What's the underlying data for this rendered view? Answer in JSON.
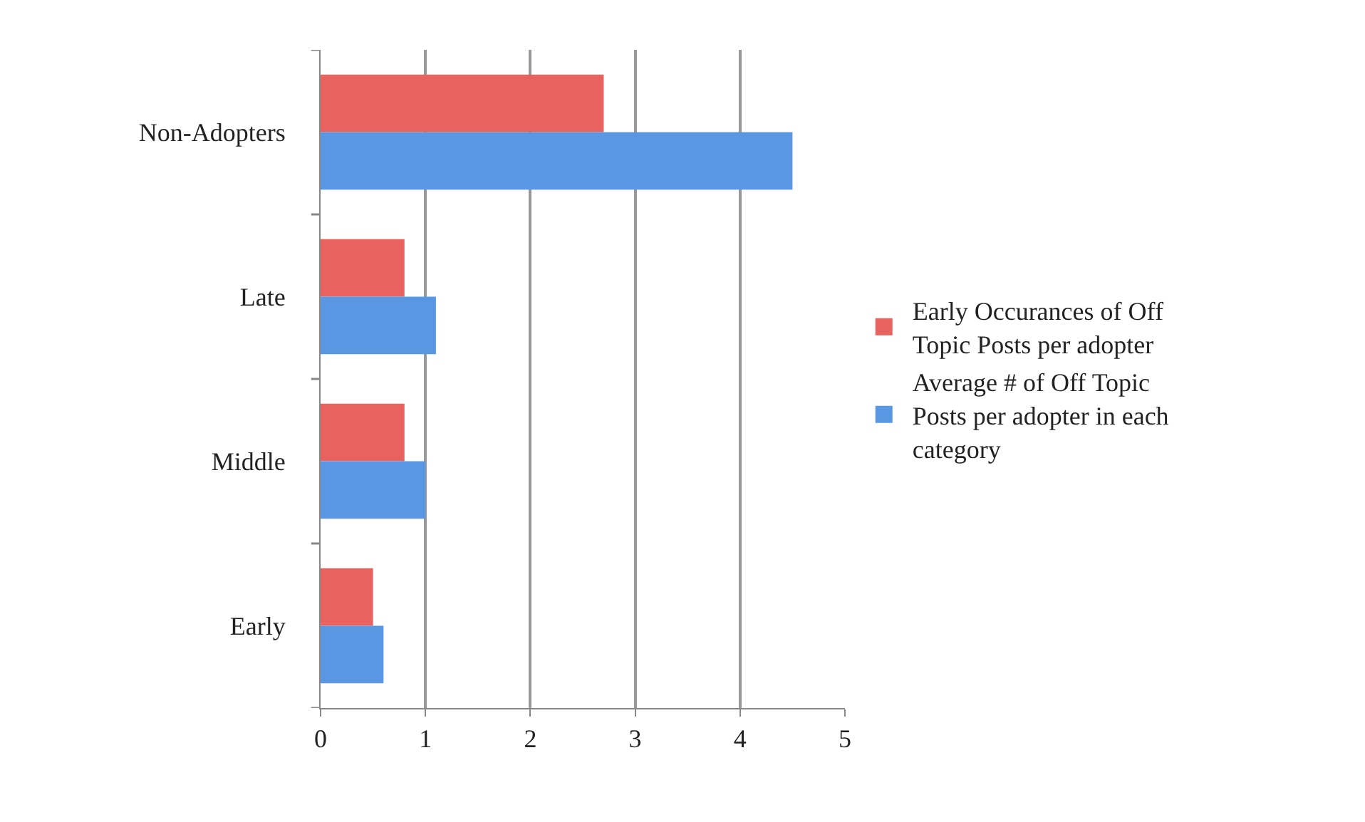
{
  "chart_data": {
    "type": "bar",
    "orientation": "horizontal",
    "categories": [
      "Non-Adopters",
      "Late",
      "Middle",
      "Early"
    ],
    "series": [
      {
        "name": "Early Occurances of Off Topic Posts per adopter",
        "color": "#e8625f",
        "values": [
          2.7,
          0.8,
          0.8,
          0.5
        ]
      },
      {
        "name": "Average # of Off Topic Posts per adopter in each category",
        "color": "#5a97e3",
        "values": [
          4.5,
          1.1,
          1.0,
          0.6
        ]
      }
    ],
    "xlim": [
      0,
      5
    ],
    "xticks": [
      0,
      1,
      2,
      3,
      4,
      5
    ],
    "grid": "x",
    "legend": "right"
  }
}
